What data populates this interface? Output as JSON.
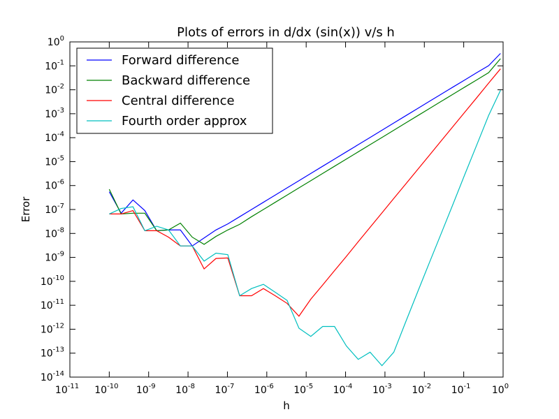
{
  "chart_data": {
    "type": "line",
    "title": "Plots of errors in d/dx (sin(x)) v/s h",
    "xlabel": "h",
    "ylabel": "Error",
    "xscale": "log",
    "yscale": "log",
    "xlim": [
      1e-11,
      1
    ],
    "ylim": [
      1e-14,
      1
    ],
    "x_ticks": [
      -11,
      -10,
      -9,
      -8,
      -7,
      -6,
      -5,
      -4,
      -3,
      -2,
      -1,
      0
    ],
    "y_ticks": [
      -14,
      -13,
      -12,
      -11,
      -10,
      -9,
      -8,
      -7,
      -6,
      -5,
      -4,
      -3,
      -2,
      -1,
      0
    ],
    "tick_base": "10",
    "grid": false,
    "legend_position": "top-left",
    "x": [
      1e-10,
      2e-10,
      4e-10,
      8e-10,
      1.6e-09,
      3.2e-09,
      6.4e-09,
      1.28e-08,
      2.56e-08,
      5.12e-08,
      1.024e-07,
      2.048e-07,
      4.096e-07,
      8.192e-07,
      1.6384e-06,
      3.2768e-06,
      6.5536e-06,
      1.31072e-05,
      2.62144e-05,
      5.24288e-05,
      0.0001048576,
      0.0002097152,
      0.0004194304,
      0.0008388608,
      0.0016777216,
      0.0033554432,
      0.0067108864,
      0.0134217728,
      0.0268435456,
      0.0536870912,
      0.1073741824,
      0.2147483648,
      0.4294967296,
      0.8589934592
    ],
    "series": [
      {
        "name": "Forward difference",
        "color": "#0000ff",
        "values": [
          5.5e-07,
          7e-08,
          2.5e-07,
          9e-08,
          1.3e-08,
          1.4e-08,
          1.4e-08,
          3e-09,
          6.5e-09,
          1.4e-08,
          2.5e-08,
          5e-08,
          1e-07,
          2e-07,
          4e-07,
          8e-07,
          1.6e-06,
          3.2e-06,
          6.4e-06,
          1.28e-05,
          2.56e-05,
          5.1e-05,
          0.000102,
          0.000205,
          0.00041,
          0.00082,
          0.00164,
          0.00328,
          0.00655,
          0.0131,
          0.026,
          0.052,
          0.102,
          0.33
        ]
      },
      {
        "name": "Backward difference",
        "color": "#008000",
        "values": [
          7e-07,
          6.5e-08,
          7e-08,
          7e-08,
          1.3e-08,
          1.4e-08,
          2.7e-08,
          7e-09,
          3.5e-09,
          7.5e-09,
          1.4e-08,
          2.4e-08,
          5e-08,
          1e-07,
          2e-07,
          4e-07,
          8e-07,
          1.6e-06,
          3.2e-06,
          6.4e-06,
          1.28e-05,
          2.56e-05,
          5.1e-05,
          0.000102,
          0.000205,
          0.00041,
          0.00082,
          0.00164,
          0.00328,
          0.00655,
          0.0131,
          0.026,
          0.052,
          0.2
        ]
      },
      {
        "name": "Central difference",
        "color": "#ff0000",
        "values": [
          6.5e-08,
          6.5e-08,
          9e-08,
          1.3e-08,
          1.3e-08,
          7e-09,
          3e-09,
          3e-09,
          3.3e-10,
          9e-10,
          9.5e-10,
          2.5e-11,
          2.5e-11,
          5e-11,
          2.5e-11,
          1.2e-11,
          3.5e-12,
          1.8e-11,
          7e-11,
          2.8e-10,
          1.1e-09,
          4.5e-09,
          1.8e-08,
          7.2e-08,
          2.9e-07,
          1.15e-06,
          4.6e-06,
          1.84e-05,
          7.4e-05,
          0.000295,
          0.00118,
          0.0047,
          0.019,
          0.075
        ]
      },
      {
        "name": "Fourth order approx",
        "color": "#00bfbf",
        "values": [
          6.5e-08,
          1.1e-07,
          1.3e-07,
          1.3e-08,
          2e-08,
          1.4e-08,
          3e-09,
          3e-09,
          7e-10,
          1.5e-09,
          1.3e-09,
          2.5e-11,
          5e-11,
          7.5e-11,
          3.5e-11,
          1.6e-11,
          1.1e-12,
          5e-13,
          1.3e-12,
          1.3e-12,
          2e-13,
          5.5e-14,
          1.1e-13,
          3e-14,
          1.1e-13,
          2e-12,
          3.5e-11,
          6e-10,
          1e-08,
          1.7e-07,
          3e-06,
          5e-05,
          0.00085,
          0.0095
        ]
      }
    ]
  }
}
